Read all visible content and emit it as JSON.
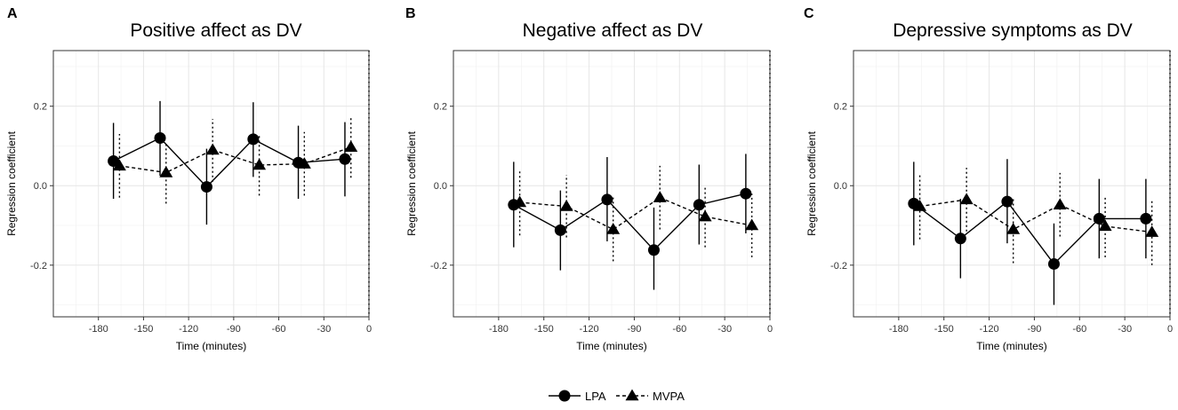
{
  "chart_data": [
    {
      "type": "scatter",
      "panel_letter": "A",
      "title": "Positive affect as DV",
      "xlabel": "Time (minutes)",
      "ylabel": "Regression coefficient",
      "xlim": [
        -210,
        0
      ],
      "ylim": [
        -0.33,
        0.34
      ],
      "x_ticks": [
        -180,
        -150,
        -120,
        -90,
        -60,
        -30,
        0
      ],
      "y_ticks": [
        -0.2,
        0.0,
        0.2
      ],
      "y_tick_labels": [
        "-0.2",
        "0.0",
        "0.2"
      ],
      "grid": true,
      "vline": 0,
      "series": [
        {
          "name": "LPA",
          "marker": "circle",
          "line": "solid",
          "x": [
            -170,
            -139,
            -108,
            -77,
            -47,
            -16
          ],
          "y": [
            0.062,
            0.12,
            -0.003,
            0.117,
            0.058,
            0.067
          ],
          "lo": [
            -0.033,
            0.025,
            -0.098,
            0.022,
            -0.033,
            -0.027
          ],
          "hi": [
            0.158,
            0.213,
            0.093,
            0.21,
            0.151,
            0.16
          ]
        },
        {
          "name": "MVPA",
          "marker": "triangle",
          "line": "dashed",
          "x": [
            -166,
            -135,
            -104,
            -73,
            -43,
            -12
          ],
          "y": [
            0.05,
            0.033,
            0.09,
            0.052,
            0.055,
            0.097
          ],
          "lo": [
            -0.03,
            -0.045,
            0.01,
            -0.025,
            -0.025,
            0.02
          ],
          "hi": [
            0.13,
            0.11,
            0.168,
            0.13,
            0.135,
            0.175
          ]
        }
      ]
    },
    {
      "type": "scatter",
      "panel_letter": "B",
      "title": "Negative affect as DV",
      "xlabel": "Time (minutes)",
      "ylabel": "Regression coefficient",
      "xlim": [
        -210,
        0
      ],
      "ylim": [
        -0.33,
        0.34
      ],
      "x_ticks": [
        -180,
        -150,
        -120,
        -90,
        -60,
        -30,
        0
      ],
      "y_ticks": [
        -0.2,
        0.0,
        0.2
      ],
      "y_tick_labels": [
        "-0.2",
        "0.0",
        "0.2"
      ],
      "grid": true,
      "vline": 0,
      "series": [
        {
          "name": "LPA",
          "marker": "circle",
          "line": "solid",
          "x": [
            -170,
            -139,
            -108,
            -77,
            -47,
            -16
          ],
          "y": [
            -0.048,
            -0.112,
            -0.035,
            -0.162,
            -0.048,
            -0.02
          ],
          "lo": [
            -0.155,
            -0.213,
            -0.14,
            -0.262,
            -0.148,
            -0.12
          ],
          "hi": [
            0.06,
            -0.012,
            0.072,
            -0.055,
            0.053,
            0.08
          ]
        },
        {
          "name": "MVPA",
          "marker": "triangle",
          "line": "dashed",
          "x": [
            -166,
            -135,
            -104,
            -73,
            -43,
            -12
          ],
          "y": [
            -0.042,
            -0.052,
            -0.11,
            -0.03,
            -0.078,
            -0.1
          ],
          "lo": [
            -0.125,
            -0.13,
            -0.19,
            -0.11,
            -0.155,
            -0.18
          ],
          "hi": [
            0.04,
            0.027,
            -0.03,
            0.05,
            0.0,
            -0.02
          ]
        }
      ]
    },
    {
      "type": "scatter",
      "panel_letter": "C",
      "title": "Depressive symptoms as DV",
      "xlabel": "Time (minutes)",
      "ylabel": "Regression coefficient",
      "xlim": [
        -210,
        0
      ],
      "ylim": [
        -0.33,
        0.34
      ],
      "x_ticks": [
        -180,
        -150,
        -120,
        -90,
        -60,
        -30,
        0
      ],
      "y_ticks": [
        -0.2,
        0.0,
        0.2
      ],
      "y_tick_labels": [
        "-0.2",
        "0.0",
        "0.2"
      ],
      "grid": true,
      "vline": 0,
      "series": [
        {
          "name": "LPA",
          "marker": "circle",
          "line": "solid",
          "x": [
            -170,
            -139,
            -108,
            -77,
            -47,
            -16
          ],
          "y": [
            -0.045,
            -0.133,
            -0.04,
            -0.197,
            -0.083,
            -0.083
          ],
          "lo": [
            -0.15,
            -0.233,
            -0.145,
            -0.3,
            -0.183,
            -0.183
          ],
          "hi": [
            0.06,
            -0.033,
            0.067,
            -0.095,
            0.017,
            0.017
          ]
        },
        {
          "name": "MVPA",
          "marker": "triangle",
          "line": "dashed",
          "x": [
            -166,
            -135,
            -104,
            -73,
            -43,
            -12
          ],
          "y": [
            -0.052,
            -0.035,
            -0.11,
            -0.048,
            -0.102,
            -0.117
          ],
          "lo": [
            -0.135,
            -0.115,
            -0.195,
            -0.128,
            -0.18,
            -0.2
          ],
          "hi": [
            0.03,
            0.045,
            -0.028,
            0.032,
            -0.025,
            -0.037
          ]
        }
      ]
    }
  ],
  "legend": {
    "items": [
      {
        "label": "LPA",
        "marker": "circle",
        "line": "solid"
      },
      {
        "label": "MVPA",
        "marker": "triangle",
        "line": "dashed"
      }
    ]
  }
}
